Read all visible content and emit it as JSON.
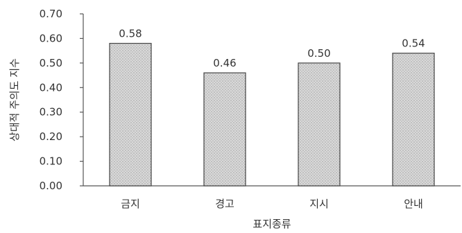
{
  "chart_data": {
    "type": "bar",
    "categories": [
      "금지",
      "경고",
      "지시",
      "안내"
    ],
    "values": [
      0.58,
      0.46,
      0.5,
      0.54
    ],
    "value_labels": [
      "0.58",
      "0.46",
      "0.50",
      "0.54"
    ],
    "title": "",
    "xlabel": "표지종류",
    "ylabel": "상대적 주의도 지수",
    "ylim": [
      0,
      0.7
    ],
    "yticks": [
      0.0,
      0.1,
      0.2,
      0.3,
      0.4,
      0.5,
      0.6,
      0.7
    ],
    "ytick_labels": [
      "0.00",
      "0.10",
      "0.20",
      "0.30",
      "0.40",
      "0.50",
      "0.60",
      "0.70"
    ],
    "grid": false,
    "legend": "none",
    "colors": {
      "bar_fill": "#d6d6d6",
      "bar_stroke": "#444444",
      "axis": "#555555",
      "text": "#333333"
    }
  }
}
